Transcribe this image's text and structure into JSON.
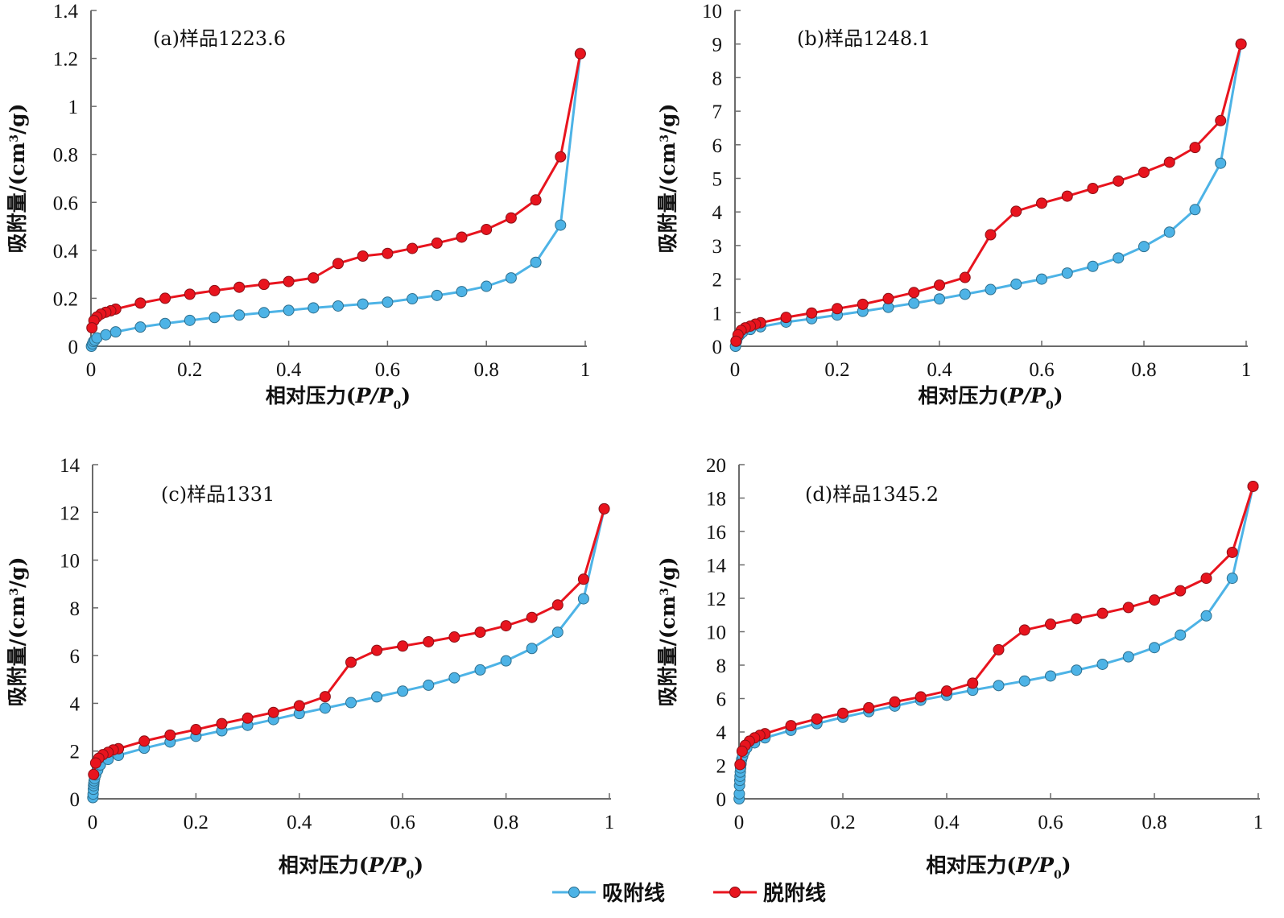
{
  "legend": {
    "items": [
      {
        "label": "吸附线",
        "color": "#4db3e6"
      },
      {
        "label": "脱附线",
        "color": "#e8141e"
      }
    ]
  },
  "chart_data": [
    {
      "type": "line",
      "title": "(a)样品1223.6",
      "xlabel": "相对压力(P/P0)",
      "ylabel": "吸附量/(cm3/g)",
      "xlim": [
        0,
        1
      ],
      "ylim": [
        0,
        1.4
      ],
      "xticks": [
        "0",
        "0.2",
        "0.4",
        "0.6",
        "0.8",
        "1"
      ],
      "yticks": [
        "0",
        "0.2",
        "0.4",
        "0.6",
        "0.8",
        "1",
        "1.2",
        "1.4"
      ],
      "grid": false,
      "series": [
        {
          "name": "吸附线",
          "color": "#4db3e6",
          "x": [
            0.001,
            0.003,
            0.005,
            0.008,
            0.012,
            0.03,
            0.05,
            0.1,
            0.15,
            0.2,
            0.25,
            0.3,
            0.35,
            0.4,
            0.45,
            0.5,
            0.55,
            0.6,
            0.65,
            0.7,
            0.75,
            0.8,
            0.85,
            0.9,
            0.95,
            0.99
          ],
          "y": [
            0.0,
            0.01,
            0.02,
            0.025,
            0.035,
            0.048,
            0.06,
            0.08,
            0.095,
            0.108,
            0.12,
            0.13,
            0.14,
            0.15,
            0.16,
            0.168,
            0.176,
            0.184,
            0.198,
            0.212,
            0.228,
            0.25,
            0.285,
            0.35,
            0.505,
            1.22
          ]
        },
        {
          "name": "脱附线",
          "color": "#e8141e",
          "x": [
            0.99,
            0.95,
            0.9,
            0.85,
            0.8,
            0.75,
            0.7,
            0.65,
            0.6,
            0.55,
            0.5,
            0.45,
            0.4,
            0.35,
            0.3,
            0.25,
            0.2,
            0.15,
            0.1,
            0.05,
            0.04,
            0.03,
            0.02,
            0.012,
            0.006,
            0.002
          ],
          "y": [
            1.22,
            0.79,
            0.61,
            0.535,
            0.487,
            0.455,
            0.43,
            0.408,
            0.387,
            0.376,
            0.345,
            0.285,
            0.27,
            0.258,
            0.246,
            0.232,
            0.217,
            0.2,
            0.18,
            0.155,
            0.148,
            0.142,
            0.134,
            0.122,
            0.107,
            0.077
          ]
        }
      ]
    },
    {
      "type": "line",
      "title": "(b)样品1248.1",
      "xlabel": "相对压力(P/P0)",
      "ylabel": "吸附量/(cm3/g)",
      "xlim": [
        0,
        1
      ],
      "ylim": [
        0,
        10
      ],
      "xticks": [
        "0",
        "0.2",
        "0.4",
        "0.6",
        "0.8",
        "1"
      ],
      "yticks": [
        "0",
        "1",
        "2",
        "3",
        "4",
        "5",
        "6",
        "7",
        "8",
        "9",
        "10"
      ],
      "grid": false,
      "series": [
        {
          "name": "吸附线",
          "color": "#4db3e6",
          "x": [
            0.001,
            0.003,
            0.006,
            0.01,
            0.015,
            0.03,
            0.05,
            0.1,
            0.15,
            0.2,
            0.25,
            0.3,
            0.35,
            0.4,
            0.45,
            0.5,
            0.55,
            0.6,
            0.65,
            0.7,
            0.75,
            0.8,
            0.85,
            0.9,
            0.95,
            0.99
          ],
          "y": [
            0.0,
            0.15,
            0.28,
            0.35,
            0.42,
            0.5,
            0.58,
            0.72,
            0.82,
            0.93,
            1.04,
            1.16,
            1.28,
            1.41,
            1.55,
            1.69,
            1.85,
            2.0,
            2.18,
            2.38,
            2.63,
            2.97,
            3.4,
            4.07,
            5.45,
            9.0
          ]
        },
        {
          "name": "脱附线",
          "color": "#e8141e",
          "x": [
            0.99,
            0.95,
            0.9,
            0.85,
            0.8,
            0.75,
            0.7,
            0.65,
            0.6,
            0.55,
            0.5,
            0.45,
            0.4,
            0.35,
            0.3,
            0.25,
            0.2,
            0.15,
            0.1,
            0.05,
            0.04,
            0.03,
            0.02,
            0.012,
            0.006,
            0.002
          ],
          "y": [
            9.0,
            6.72,
            5.92,
            5.48,
            5.18,
            4.92,
            4.7,
            4.47,
            4.26,
            4.02,
            3.32,
            2.05,
            1.82,
            1.6,
            1.42,
            1.25,
            1.12,
            0.99,
            0.86,
            0.7,
            0.66,
            0.6,
            0.55,
            0.47,
            0.34,
            0.15
          ]
        }
      ]
    },
    {
      "type": "line",
      "title": "(c)样品1331",
      "xlabel": "相对压力(P/P0)",
      "ylabel": "吸附量/(cm3/g)",
      "xlim": [
        0,
        1
      ],
      "ylim": [
        0,
        14
      ],
      "xticks": [
        "0",
        "0.2",
        "0.4",
        "0.6",
        "0.8",
        "1"
      ],
      "yticks": [
        "0",
        "2",
        "4",
        "6",
        "8",
        "10",
        "12",
        "14"
      ],
      "grid": false,
      "series": [
        {
          "name": "吸附线",
          "color": "#4db3e6",
          "x": [
            0.0005,
            0.001,
            0.0015,
            0.002,
            0.0025,
            0.003,
            0.004,
            0.006,
            0.01,
            0.015,
            0.03,
            0.05,
            0.1,
            0.15,
            0.2,
            0.25,
            0.3,
            0.35,
            0.4,
            0.45,
            0.5,
            0.55,
            0.6,
            0.65,
            0.7,
            0.75,
            0.8,
            0.85,
            0.9,
            0.95,
            0.99
          ],
          "y": [
            0.05,
            0.2,
            0.4,
            0.55,
            0.65,
            0.75,
            0.85,
            1.0,
            1.2,
            1.42,
            1.65,
            1.82,
            2.12,
            2.38,
            2.62,
            2.85,
            3.08,
            3.32,
            3.57,
            3.8,
            4.03,
            4.27,
            4.51,
            4.76,
            5.07,
            5.4,
            5.78,
            6.3,
            6.98,
            8.38,
            12.15
          ]
        },
        {
          "name": "脱附线",
          "color": "#e8141e",
          "x": [
            0.99,
            0.95,
            0.9,
            0.85,
            0.8,
            0.75,
            0.7,
            0.65,
            0.6,
            0.55,
            0.5,
            0.45,
            0.4,
            0.35,
            0.3,
            0.25,
            0.2,
            0.15,
            0.1,
            0.05,
            0.04,
            0.03,
            0.02,
            0.012,
            0.006,
            0.002
          ],
          "y": [
            12.15,
            9.2,
            8.12,
            7.6,
            7.25,
            6.98,
            6.78,
            6.58,
            6.4,
            6.22,
            5.72,
            4.28,
            3.9,
            3.62,
            3.38,
            3.15,
            2.9,
            2.67,
            2.42,
            2.1,
            2.05,
            1.95,
            1.85,
            1.7,
            1.5,
            1.02
          ]
        }
      ]
    },
    {
      "type": "line",
      "title": "(d)样品1345.2",
      "xlabel": "相对压力(P/P0)",
      "ylabel": "吸附量/(cm3/g)",
      "xlim": [
        0,
        1
      ],
      "ylim": [
        0,
        20
      ],
      "xticks": [
        "0",
        "0.2",
        "0.4",
        "0.6",
        "0.8",
        "1"
      ],
      "yticks": [
        "0",
        "2",
        "4",
        "6",
        "8",
        "10",
        "12",
        "14",
        "16",
        "18",
        "20"
      ],
      "grid": false,
      "series": [
        {
          "name": "吸附线",
          "color": "#4db3e6",
          "x": [
            0.0003,
            0.0006,
            0.001,
            0.0015,
            0.002,
            0.0025,
            0.003,
            0.004,
            0.005,
            0.007,
            0.01,
            0.015,
            0.03,
            0.05,
            0.1,
            0.15,
            0.2,
            0.25,
            0.3,
            0.35,
            0.4,
            0.45,
            0.5,
            0.55,
            0.6,
            0.65,
            0.7,
            0.75,
            0.8,
            0.85,
            0.9,
            0.95,
            0.99
          ],
          "y": [
            0.0,
            0.3,
            0.8,
            1.1,
            1.35,
            1.6,
            1.85,
            2.1,
            2.35,
            2.55,
            2.8,
            3.05,
            3.35,
            3.65,
            4.1,
            4.5,
            4.88,
            5.22,
            5.55,
            5.9,
            6.2,
            6.5,
            6.78,
            7.05,
            7.35,
            7.7,
            8.05,
            8.5,
            9.05,
            9.8,
            10.95,
            13.2,
            18.7
          ]
        },
        {
          "name": "脱附线",
          "color": "#e8141e",
          "x": [
            0.99,
            0.95,
            0.9,
            0.85,
            0.8,
            0.75,
            0.7,
            0.65,
            0.6,
            0.55,
            0.5,
            0.45,
            0.4,
            0.35,
            0.3,
            0.25,
            0.2,
            0.15,
            0.1,
            0.05,
            0.04,
            0.03,
            0.02,
            0.012,
            0.006,
            0.002
          ],
          "y": [
            18.7,
            14.75,
            13.2,
            12.45,
            11.9,
            11.45,
            11.1,
            10.78,
            10.45,
            10.1,
            8.92,
            6.92,
            6.45,
            6.1,
            5.8,
            5.45,
            5.12,
            4.78,
            4.38,
            3.9,
            3.8,
            3.65,
            3.45,
            3.2,
            2.85,
            2.05
          ]
        }
      ]
    }
  ]
}
